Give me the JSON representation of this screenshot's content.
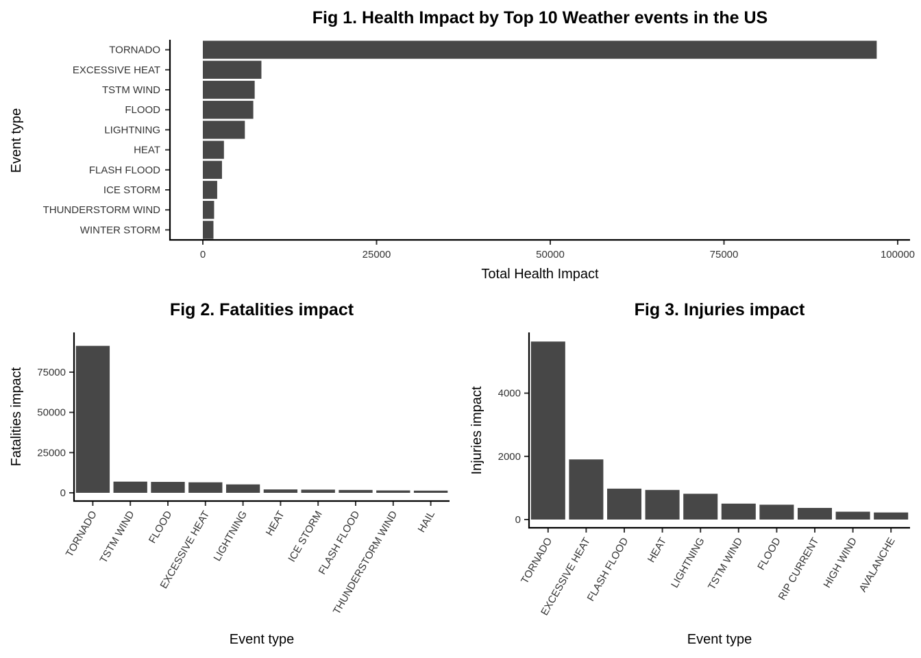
{
  "colors": {
    "bar": "#474747",
    "axis": "#000000",
    "tick_text": "#333333",
    "background": "#ffffff"
  },
  "chart_data": [
    {
      "id": "fig1",
      "type": "bar",
      "orientation": "horizontal",
      "title": "Fig 1. Health Impact by Top 10 Weather events in the US",
      "xlabel": "Total Health Impact",
      "ylabel": "Event type",
      "categories": [
        "TORNADO",
        "EXCESSIVE HEAT",
        "TSTM WIND",
        "FLOOD",
        "LIGHTNING",
        "HEAT",
        "FLASH FLOOD",
        "ICE STORM",
        "THUNDERSTORM WIND",
        "WINTER STORM"
      ],
      "values": [
        96979,
        8428,
        7461,
        7259,
        6046,
        3037,
        2755,
        2064,
        1621,
        1527
      ],
      "xlim": [
        0,
        100000
      ],
      "xticks": [
        "0",
        "25000",
        "50000",
        "75000",
        "100000"
      ],
      "grid": false
    },
    {
      "id": "fig2",
      "type": "bar",
      "orientation": "vertical",
      "title": "Fig 2. Fatalities impact",
      "xlabel": "Event type",
      "ylabel": "Fatalities impact",
      "categories": [
        "TORNADO",
        "TSTM WIND",
        "FLOOD",
        "EXCESSIVE HEAT",
        "LIGHTNING",
        "HEAT",
        "ICE STORM",
        "FLASH FLOOD",
        "THUNDERSTORM WIND",
        "HAIL"
      ],
      "values": [
        91346,
        6957,
        6789,
        6525,
        5230,
        2100,
        1975,
        1777,
        1488,
        1361
      ],
      "ylim": [
        0,
        95000
      ],
      "yticks": [
        "0",
        "25000",
        "50000",
        "75000"
      ],
      "grid": false
    },
    {
      "id": "fig3",
      "type": "bar",
      "orientation": "vertical",
      "title": "Fig 3. Injuries impact",
      "xlabel": "Event type",
      "ylabel": "Injuries impact",
      "categories": [
        "TORNADO",
        "EXCESSIVE HEAT",
        "FLASH FLOOD",
        "HEAT",
        "LIGHTNING",
        "TSTM WIND",
        "FLOOD",
        "RIP CURRENT",
        "HIGH WIND",
        "AVALANCHE"
      ],
      "values": [
        5633,
        1903,
        978,
        937,
        816,
        504,
        470,
        368,
        248,
        224
      ],
      "ylim": [
        0,
        5900
      ],
      "yticks": [
        "0",
        "2000",
        "4000"
      ],
      "grid": false
    }
  ]
}
